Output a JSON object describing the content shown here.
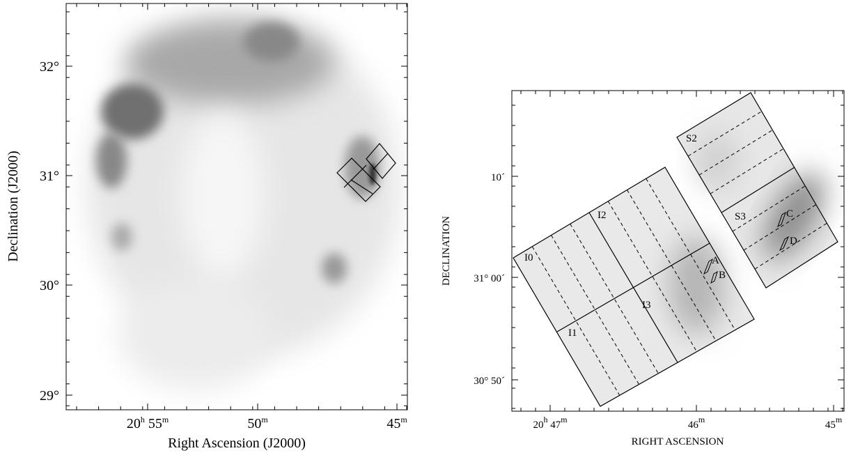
{
  "left_panel": {
    "x_label": "Right Ascension (J2000)",
    "y_label": "Declination (J2000)",
    "x_ticks": [
      [
        "20",
        "h",
        " 55",
        "m"
      ],
      [
        "50",
        "m"
      ],
      [
        "45",
        "m"
      ]
    ],
    "y_ticks": [
      "32°",
      "31°",
      "30°",
      "29°"
    ]
  },
  "right_panel": {
    "x_label": "RIGHT ASCENSION",
    "y_label": "DECLINATION",
    "x_ticks": [
      [
        "20",
        "h",
        " 47",
        "m"
      ],
      [
        "46",
        "m"
      ],
      [
        "45",
        "m"
      ]
    ],
    "y_ticks": [
      "10´",
      "31° 00´",
      "30° 50´"
    ],
    "chips": [
      "I0",
      "I1",
      "I2",
      "I3",
      "S2",
      "S3"
    ],
    "regions": [
      "A",
      "B",
      "C",
      "D"
    ]
  }
}
